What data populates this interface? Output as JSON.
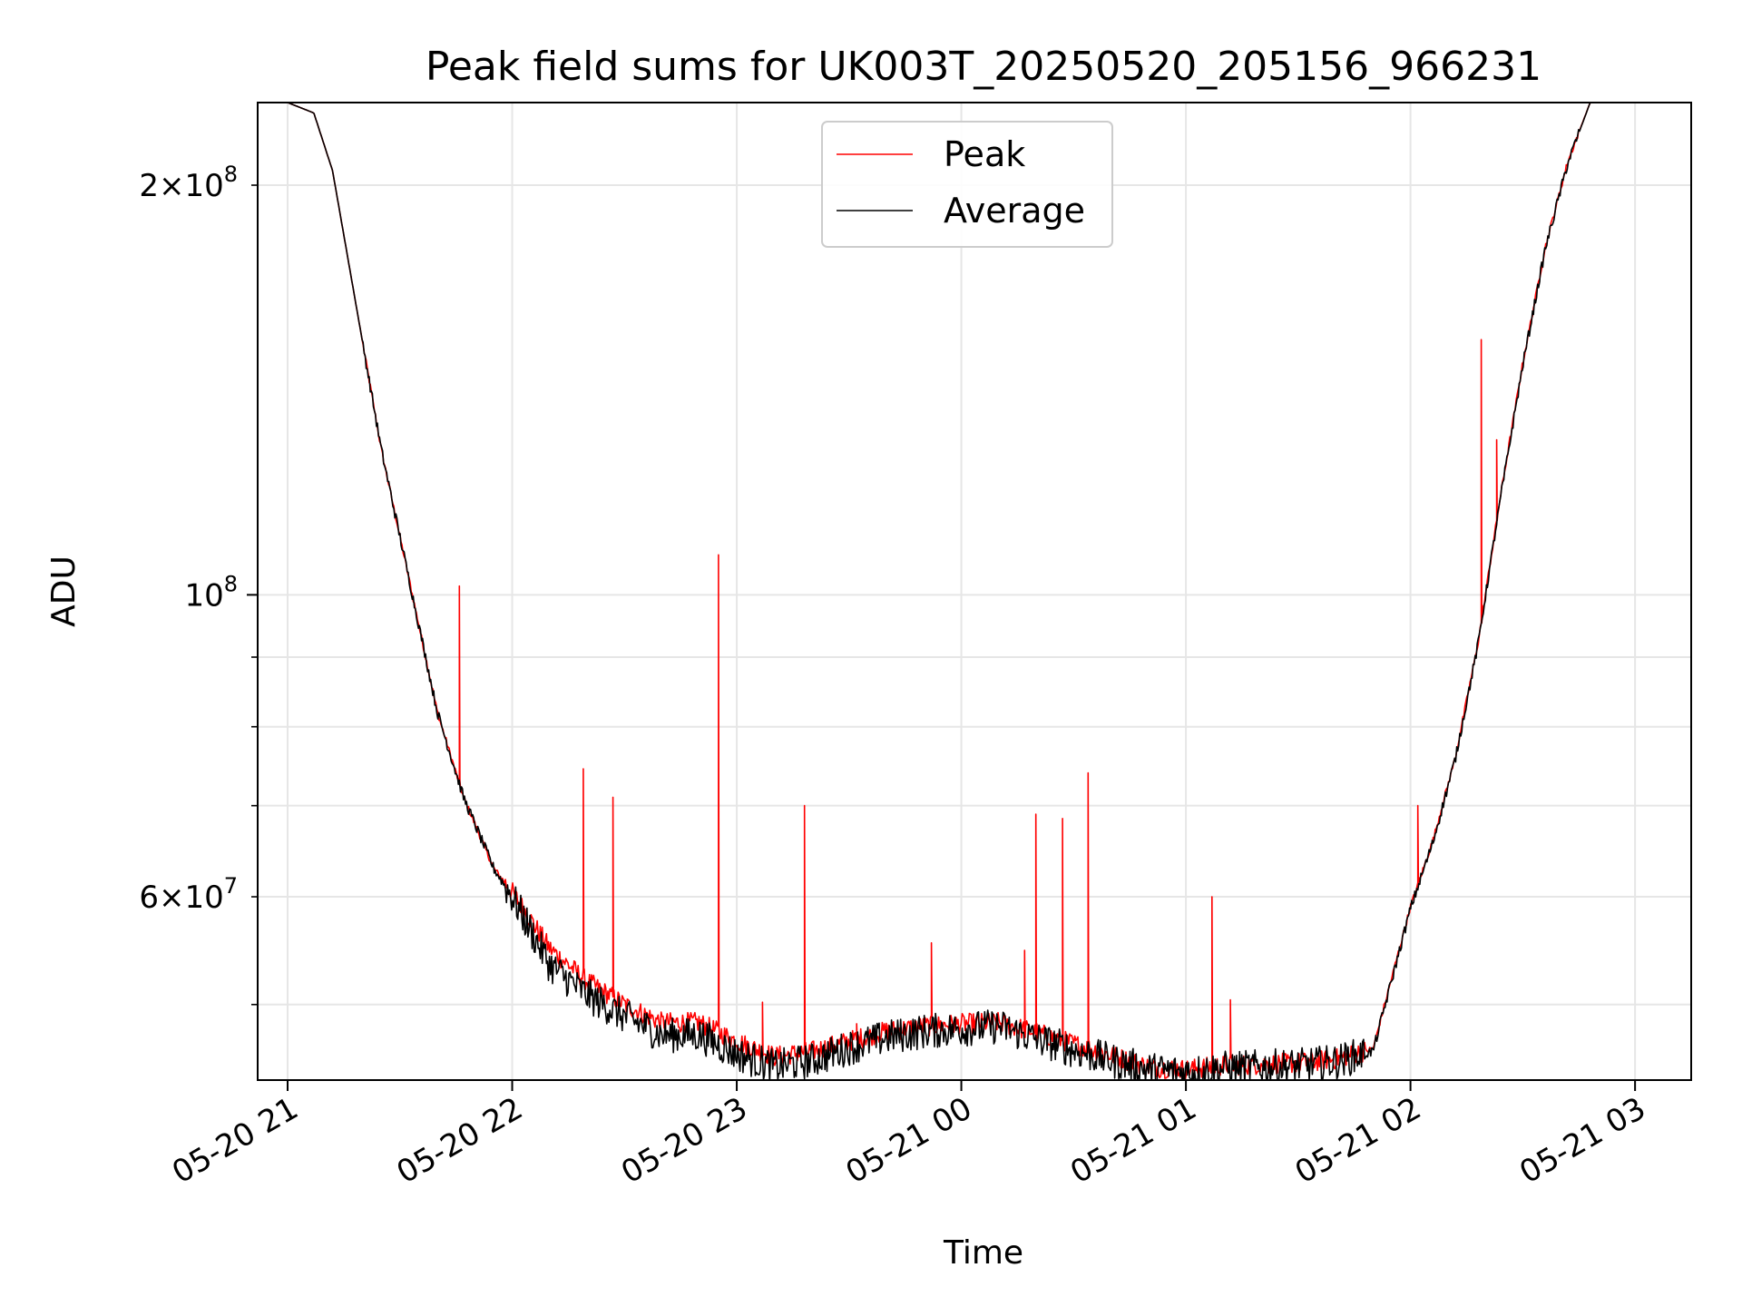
{
  "chart_data": {
    "type": "line",
    "title": "Peak field sums for UK003T_20250520_205156_966231",
    "xlabel": "Time",
    "ylabel": "ADU",
    "yscale": "log",
    "ylim": [
      44000000,
      230000000
    ],
    "xlim": [
      "2025-05-20 20:52",
      "2025-05-21 03:15"
    ],
    "grid": true,
    "legend_position": "top-center",
    "x_ticks": [
      {
        "value": "2025-05-20 21:00",
        "label": "05-20 21"
      },
      {
        "value": "2025-05-20 22:00",
        "label": "05-20 22"
      },
      {
        "value": "2025-05-20 23:00",
        "label": "05-20 23"
      },
      {
        "value": "2025-05-21 00:00",
        "label": "05-21 00"
      },
      {
        "value": "2025-05-21 01:00",
        "label": "05-21 01"
      },
      {
        "value": "2025-05-21 02:00",
        "label": "05-21 02"
      },
      {
        "value": "2025-05-21 03:00",
        "label": "05-21 03"
      }
    ],
    "y_major_ticks": [
      {
        "value": 100000000,
        "base": "10",
        "exp": "8"
      }
    ],
    "y_minor_ticks": [
      {
        "value": 60000000,
        "mant": "6",
        "exp": "7"
      },
      {
        "value": 200000000,
        "mant": "2",
        "exp": "8"
      }
    ],
    "y_minor_unlabeled": [
      50000000,
      70000000,
      80000000,
      90000000
    ],
    "series": [
      {
        "name": "Peak",
        "color": "#ff0000",
        "x": [
          "2025-05-20 20:52",
          "2025-05-20 21:00",
          "2025-05-20 21:07",
          "2025-05-20 21:12",
          "2025-05-20 21:18",
          "2025-05-20 21:25",
          "2025-05-20 21:33",
          "2025-05-20 21:40",
          "2025-05-20 21:47",
          "2025-05-20 21:55",
          "2025-05-20 22:00",
          "2025-05-20 22:10",
          "2025-05-20 22:20",
          "2025-05-20 22:30",
          "2025-05-20 22:40",
          "2025-05-20 22:50",
          "2025-05-20 23:00",
          "2025-05-20 23:10",
          "2025-05-20 23:20",
          "2025-05-20 23:30",
          "2025-05-20 23:40",
          "2025-05-20 23:50",
          "2025-05-21 00:00",
          "2025-05-21 00:10",
          "2025-05-21 00:20",
          "2025-05-21 00:30",
          "2025-05-21 00:40",
          "2025-05-21 00:50",
          "2025-05-21 01:00",
          "2025-05-21 01:10",
          "2025-05-21 01:20",
          "2025-05-21 01:30",
          "2025-05-21 01:40",
          "2025-05-21 01:50",
          "2025-05-21 02:00",
          "2025-05-21 02:06",
          "2025-05-21 02:12",
          "2025-05-21 02:18",
          "2025-05-21 02:24",
          "2025-05-21 02:30",
          "2025-05-21 02:36",
          "2025-05-21 02:42",
          "2025-05-21 02:48",
          "2025-05-21 03:00",
          "2025-05-21 03:15"
        ],
        "values": [
          230000000,
          230000000,
          226000000,
          205000000,
          165000000,
          128000000,
          101000000,
          82000000,
          71000000,
          63000000,
          60500000,
          55000000,
          52000000,
          50000000,
          48500000,
          48500000,
          47000000,
          45800000,
          46200000,
          47000000,
          47800000,
          48200000,
          48400000,
          48500000,
          47700000,
          46800000,
          45900000,
          45000000,
          44800000,
          45100000,
          45200000,
          45300000,
          45600000,
          46400000,
          59000000,
          66000000,
          76000000,
          92000000,
          118000000,
          148000000,
          180000000,
          208000000,
          230000000,
          230000000,
          230000000
        ],
        "spikes": [
          {
            "x": "2025-05-20 21:46",
            "value": 101500000
          },
          {
            "x": "2025-05-20 22:19",
            "value": 74500000
          },
          {
            "x": "2025-05-20 22:27",
            "value": 71000000
          },
          {
            "x": "2025-05-20 22:55",
            "value": 107000000
          },
          {
            "x": "2025-05-20 23:07",
            "value": 50200000
          },
          {
            "x": "2025-05-20 23:18",
            "value": 70000000
          },
          {
            "x": "2025-05-20 23:32",
            "value": 48400000
          },
          {
            "x": "2025-05-20 23:52",
            "value": 55500000
          },
          {
            "x": "2025-05-21 00:17",
            "value": 54800000
          },
          {
            "x": "2025-05-21 00:20",
            "value": 69000000
          },
          {
            "x": "2025-05-21 00:27",
            "value": 68500000
          },
          {
            "x": "2025-05-21 00:34",
            "value": 74000000
          },
          {
            "x": "2025-05-21 01:07",
            "value": 60000000
          },
          {
            "x": "2025-05-21 01:12",
            "value": 50400000
          },
          {
            "x": "2025-05-21 02:02",
            "value": 70000000
          },
          {
            "x": "2025-05-21 02:19",
            "value": 154000000
          },
          {
            "x": "2025-05-21 02:23",
            "value": 130000000
          }
        ]
      },
      {
        "name": "Average",
        "color": "#000000",
        "x": [
          "2025-05-20 20:52",
          "2025-05-20 21:00",
          "2025-05-20 21:07",
          "2025-05-20 21:12",
          "2025-05-20 21:18",
          "2025-05-20 21:25",
          "2025-05-20 21:33",
          "2025-05-20 21:40",
          "2025-05-20 21:47",
          "2025-05-20 21:55",
          "2025-05-20 22:00",
          "2025-05-20 22:10",
          "2025-05-20 22:20",
          "2025-05-20 22:30",
          "2025-05-20 22:40",
          "2025-05-20 22:50",
          "2025-05-20 23:00",
          "2025-05-20 23:10",
          "2025-05-20 23:20",
          "2025-05-20 23:30",
          "2025-05-20 23:40",
          "2025-05-20 23:50",
          "2025-05-21 00:00",
          "2025-05-21 00:10",
          "2025-05-21 00:20",
          "2025-05-21 00:30",
          "2025-05-21 00:40",
          "2025-05-21 00:50",
          "2025-05-21 01:00",
          "2025-05-21 01:10",
          "2025-05-21 01:20",
          "2025-05-21 01:30",
          "2025-05-21 01:40",
          "2025-05-21 01:50",
          "2025-05-21 02:00",
          "2025-05-21 02:06",
          "2025-05-21 02:12",
          "2025-05-21 02:18",
          "2025-05-21 02:24",
          "2025-05-21 02:30",
          "2025-05-21 02:36",
          "2025-05-21 02:42",
          "2025-05-21 02:48",
          "2025-05-21 03:00",
          "2025-05-21 03:15"
        ],
        "values": [
          230000000,
          230000000,
          226000000,
          205000000,
          165000000,
          128000000,
          101000000,
          82000000,
          71000000,
          63000000,
          60000000,
          53500000,
          50800000,
          49000000,
          47500000,
          47500000,
          46000000,
          45000000,
          45500000,
          46500000,
          47300000,
          47800000,
          48000000,
          48200000,
          47200000,
          46300000,
          45500000,
          44800000,
          44600000,
          44900000,
          45000000,
          45100000,
          45400000,
          46200000,
          58800000,
          65800000,
          75800000,
          91800000,
          117500000,
          147500000,
          179500000,
          207500000,
          230000000,
          230000000,
          230000000
        ]
      }
    ]
  }
}
